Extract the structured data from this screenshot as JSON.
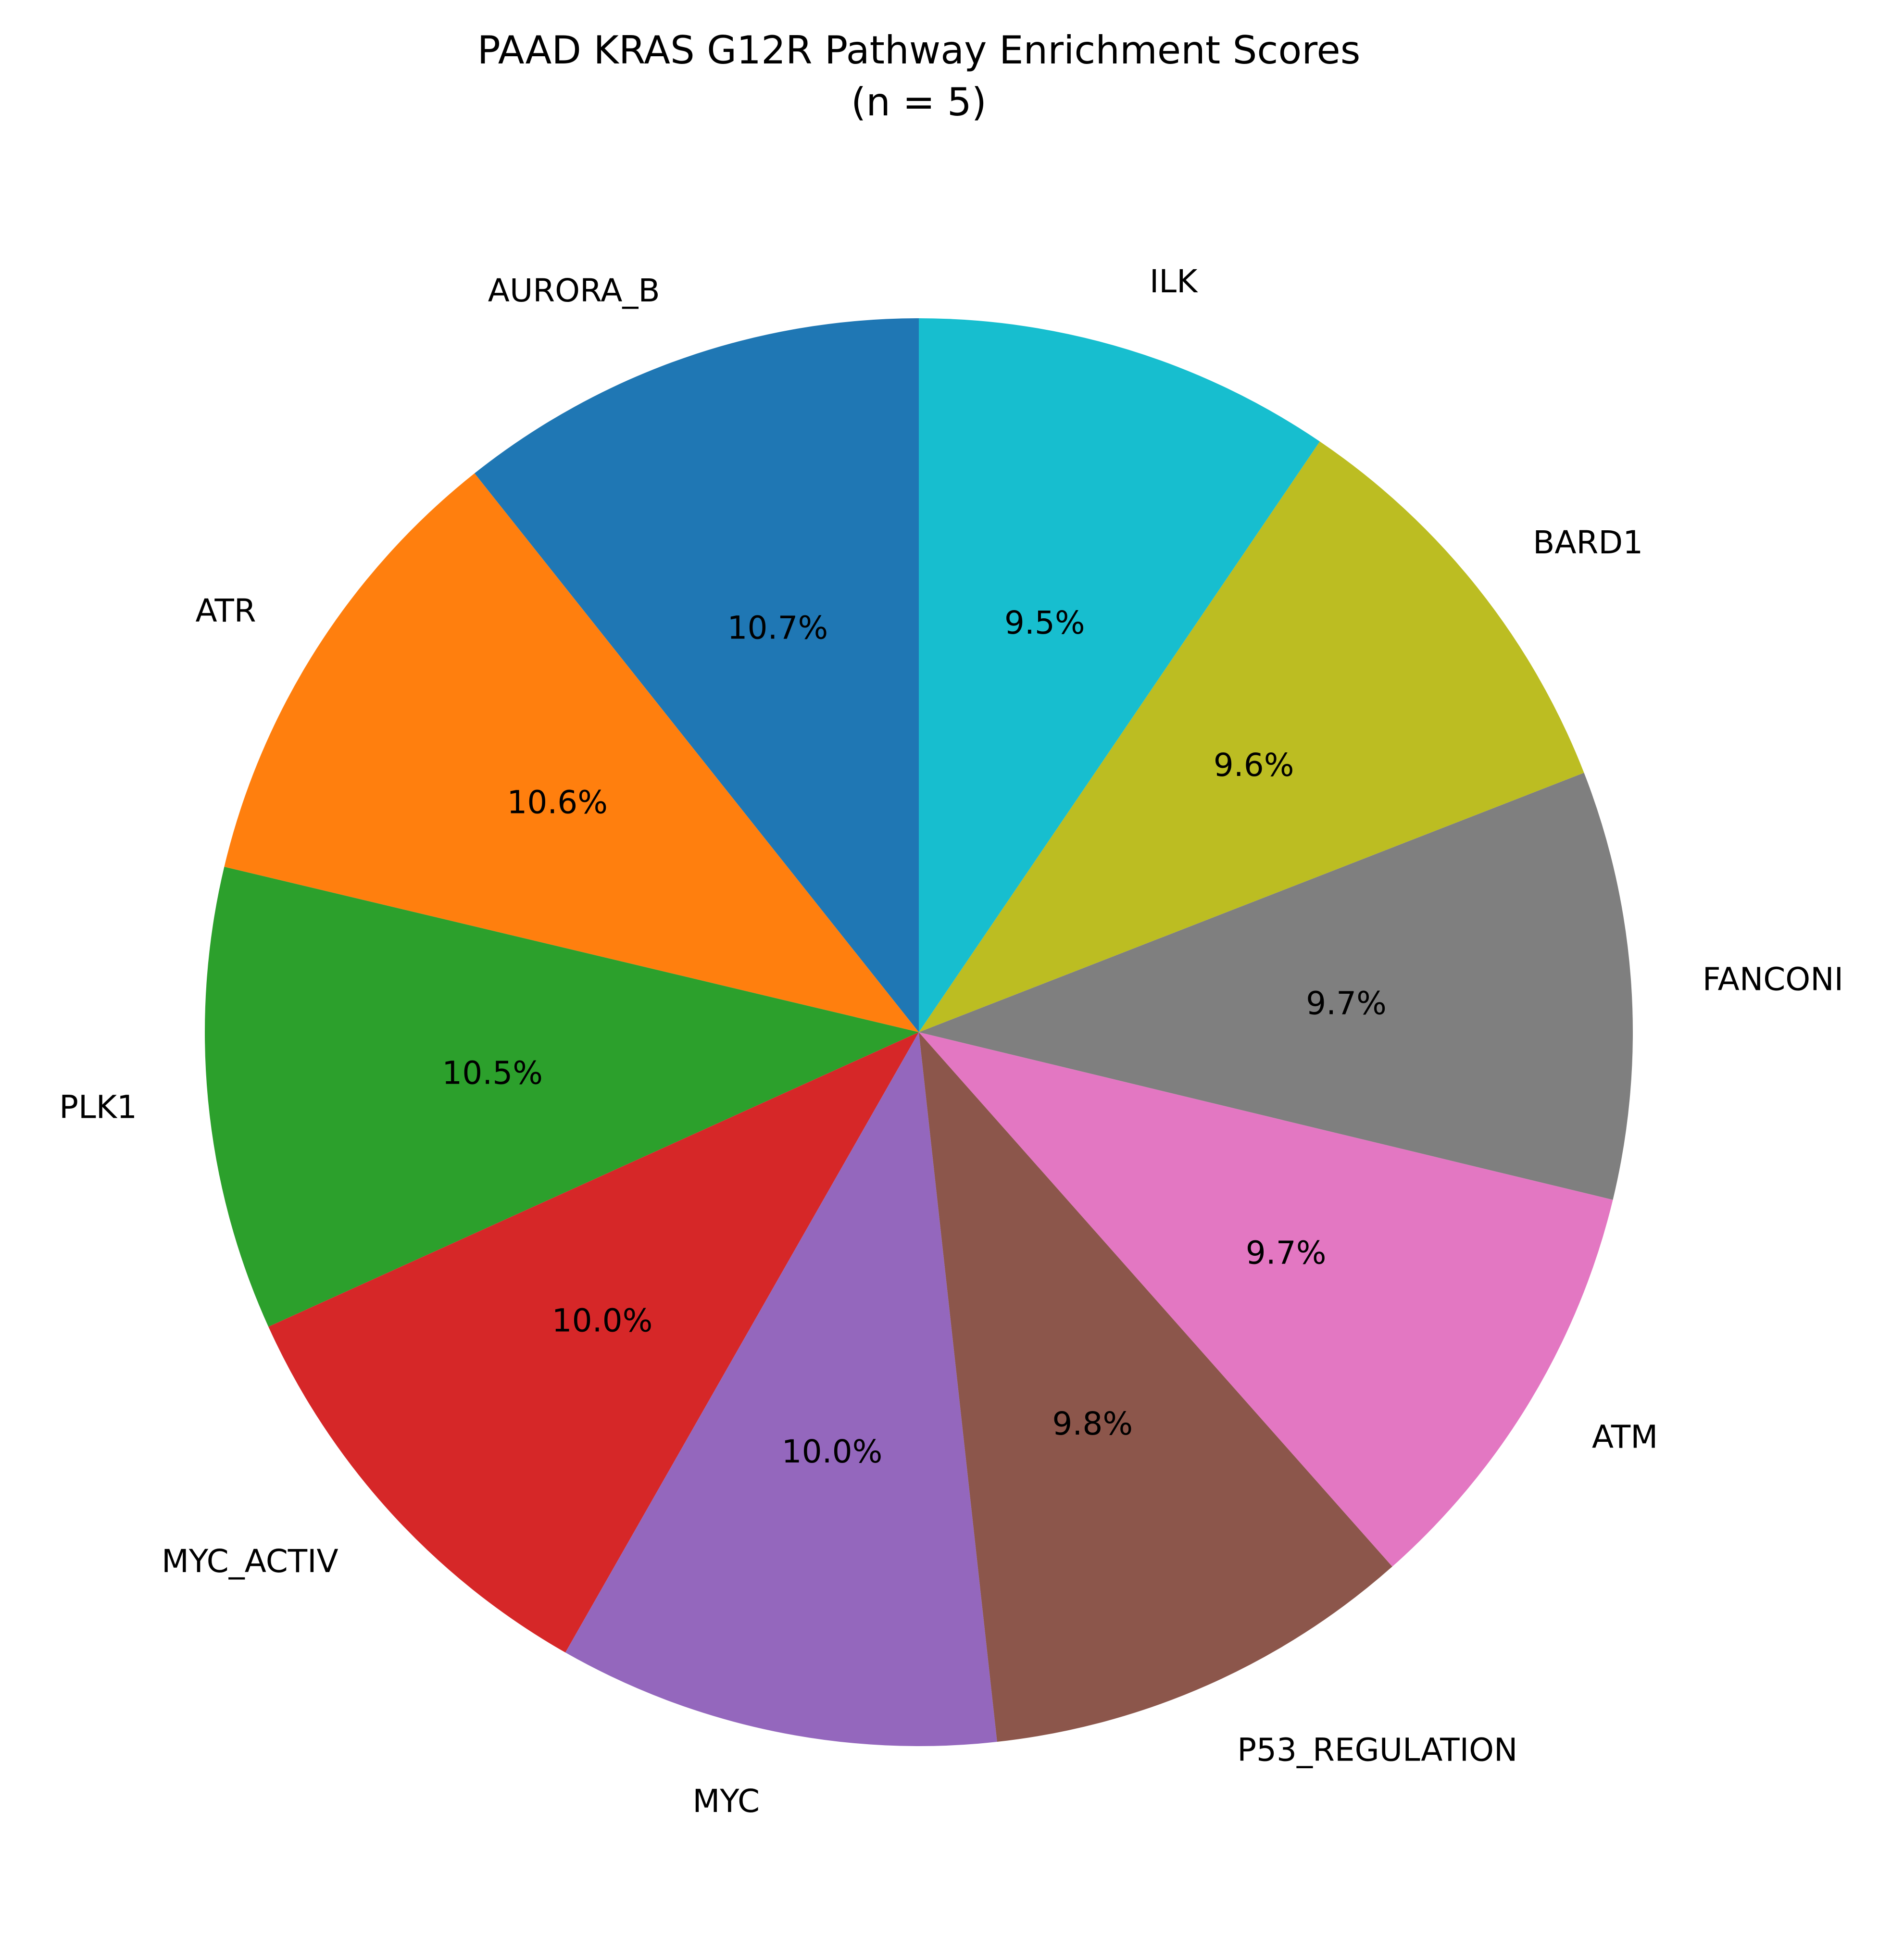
{
  "chart_data": {
    "type": "pie",
    "title": "PAAD KRAS G12R Pathway Enrichment Scores",
    "subtitle": "(n = 5)",
    "slices": [
      {
        "label": "AURORA_B",
        "value": 10.7,
        "pct_label": "10.7%",
        "color": "#1f77b4"
      },
      {
        "label": "ATR",
        "value": 10.6,
        "pct_label": "10.6%",
        "color": "#ff7f0e"
      },
      {
        "label": "PLK1",
        "value": 10.5,
        "pct_label": "10.5%",
        "color": "#2ca02c"
      },
      {
        "label": "MYC_ACTIV",
        "value": 10.0,
        "pct_label": "10.0%",
        "color": "#d62728"
      },
      {
        "label": "MYC",
        "value": 10.0,
        "pct_label": "10.0%",
        "color": "#9467bd"
      },
      {
        "label": "P53_REGULATION",
        "value": 9.8,
        "pct_label": "9.8%",
        "color": "#8c564b"
      },
      {
        "label": "ATM",
        "value": 9.7,
        "pct_label": "9.7%",
        "color": "#e377c2"
      },
      {
        "label": "FANCONI",
        "value": 9.7,
        "pct_label": "9.7%",
        "color": "#7f7f7f"
      },
      {
        "label": "BARD1",
        "value": 9.6,
        "pct_label": "9.6%",
        "color": "#bcbd22"
      },
      {
        "label": "ILK",
        "value": 9.5,
        "pct_label": "9.5%",
        "color": "#17becf"
      }
    ],
    "start_angle": "top",
    "direction": "counterclockwise"
  }
}
